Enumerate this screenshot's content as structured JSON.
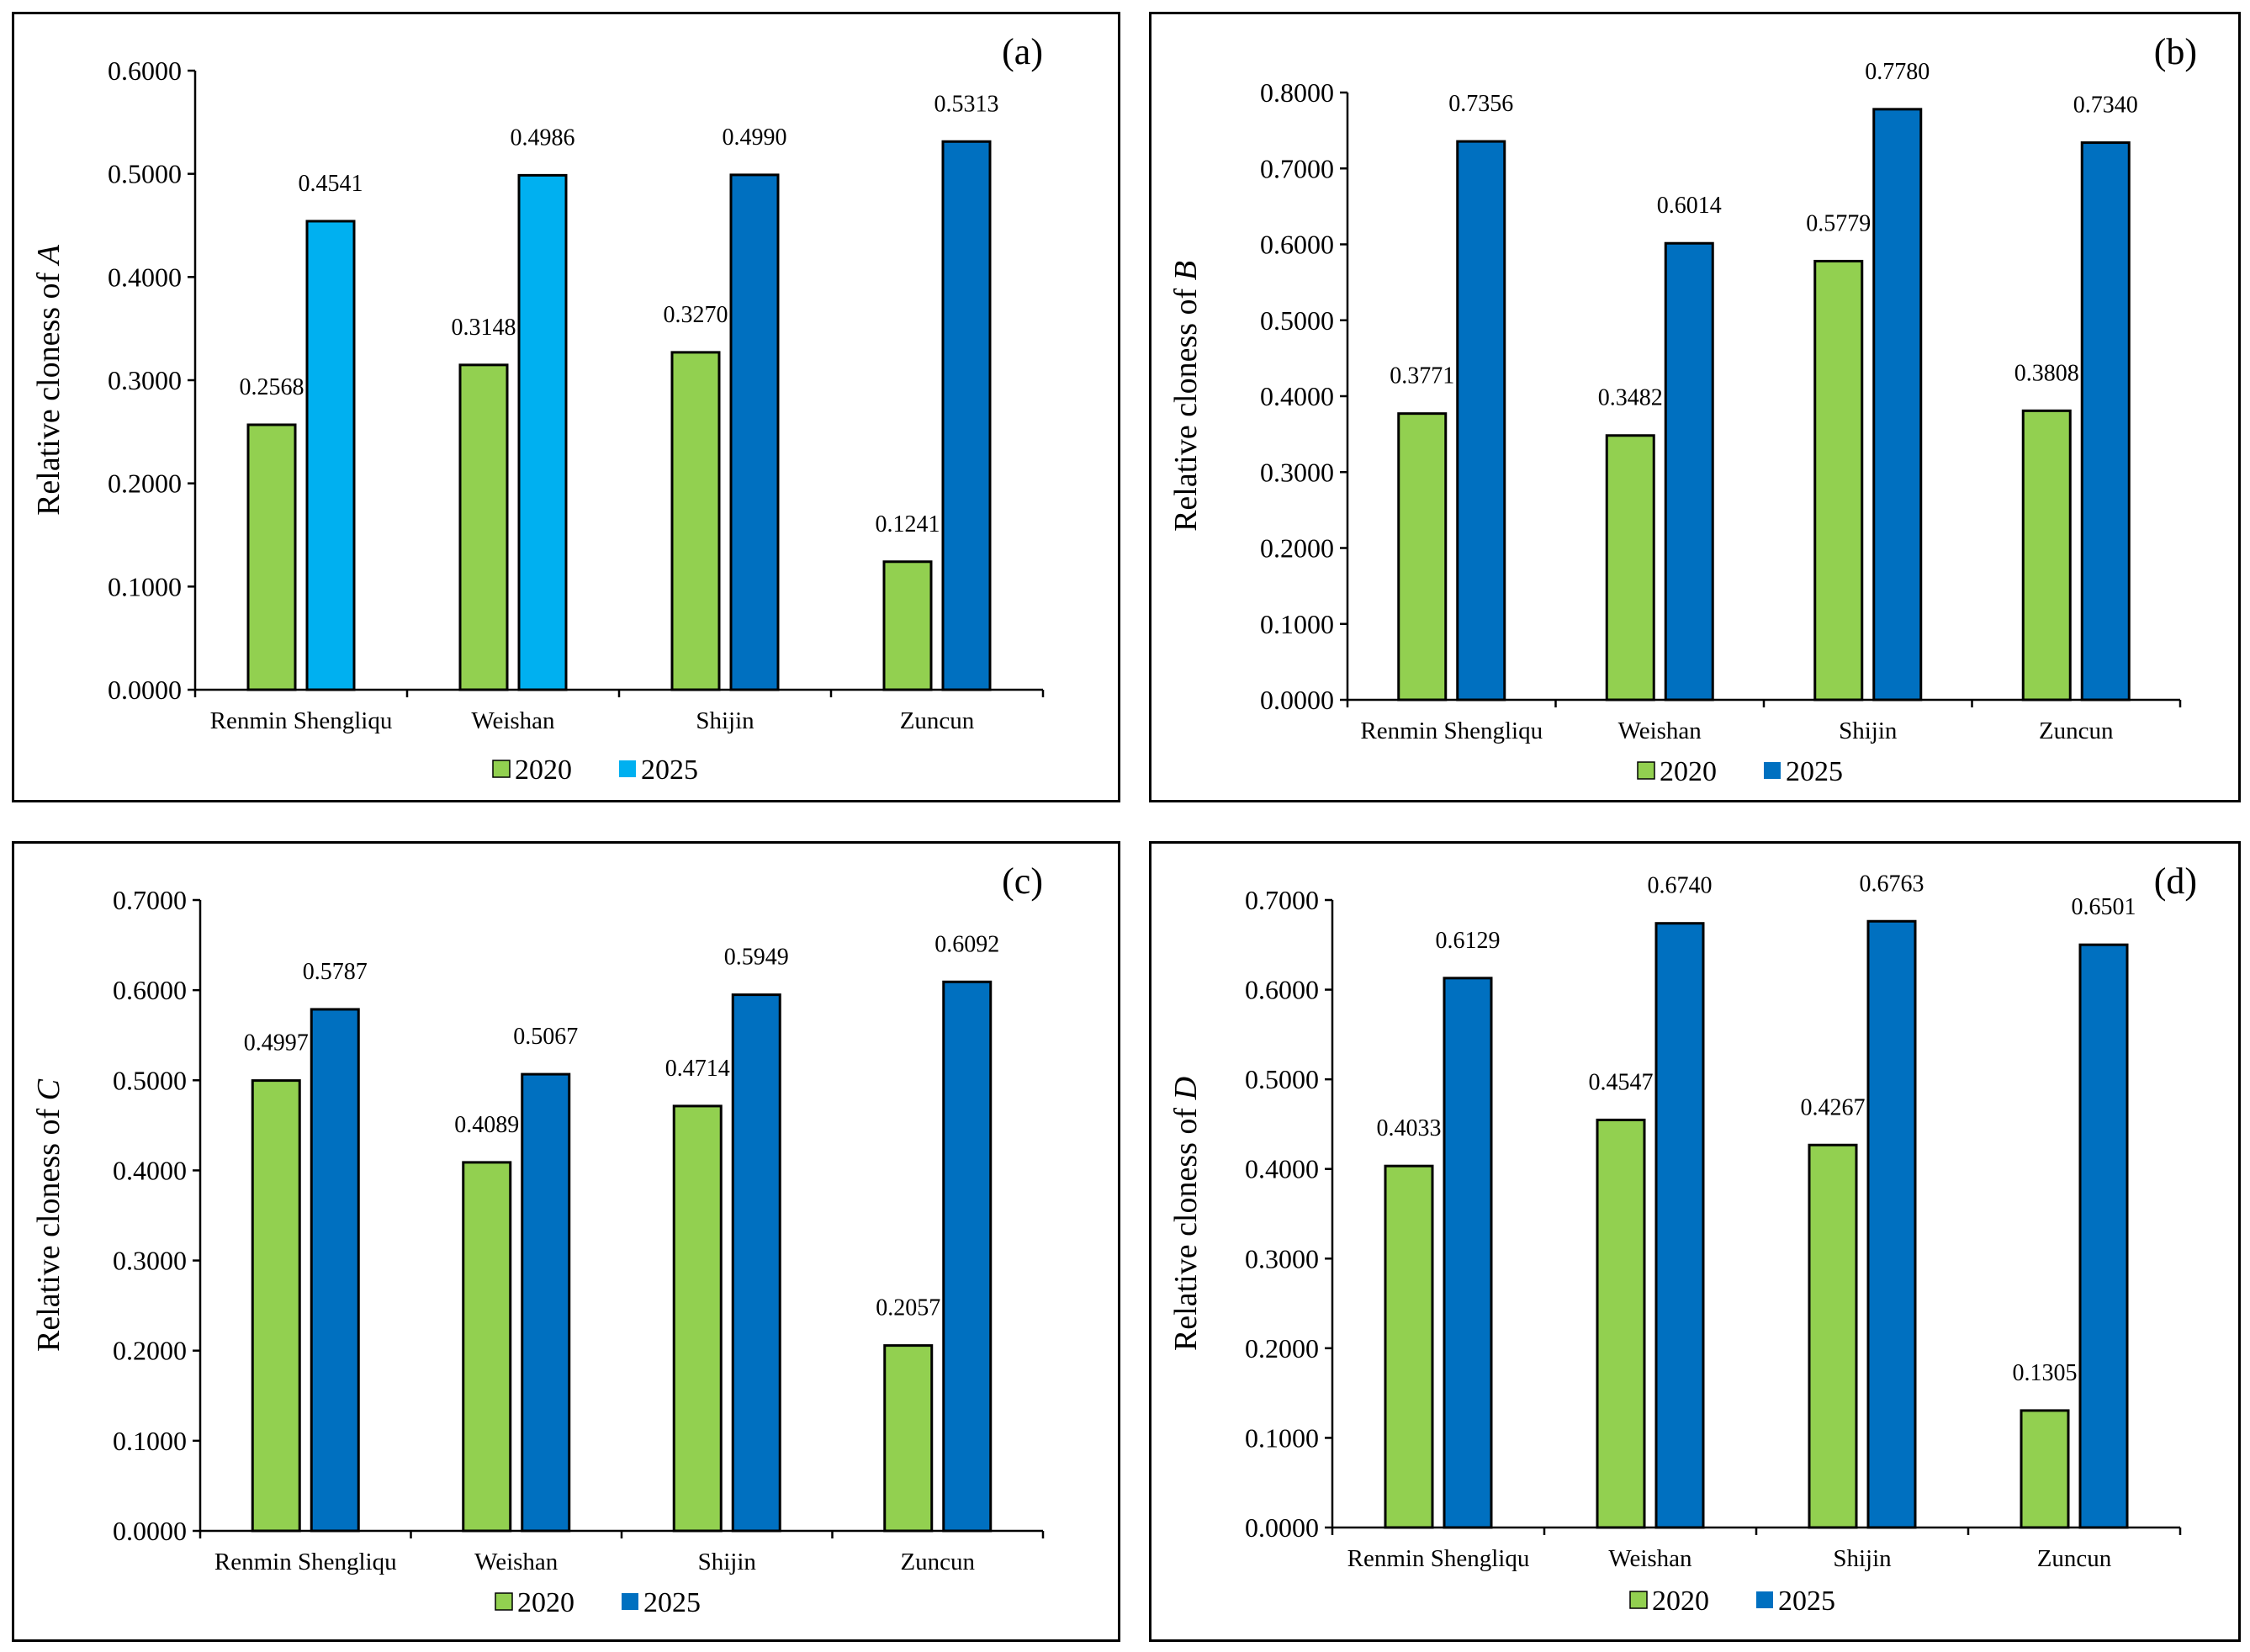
{
  "chart_data": [
    {
      "type": "bar",
      "panel_label": "(a)",
      "ylabel_prefix": "Relative cloness of ",
      "ylabel_var": "A",
      "ylim": [
        0,
        0.6
      ],
      "yticks": [
        "0.0000",
        "0.1000",
        "0.2000",
        "0.3000",
        "0.4000",
        "0.5000",
        "0.6000"
      ],
      "categories": [
        "Renmin Shengliqu",
        "Weishan",
        "Shijin",
        "Zuncun"
      ],
      "series": [
        {
          "name": "2020",
          "color": "#92d050",
          "values": [
            0.2568,
            0.3148,
            0.327,
            0.1241
          ],
          "labels": [
            "0.2568",
            "0.3148",
            "0.3270",
            "0.1241"
          ]
        },
        {
          "name": "2025",
          "color": "#0070c0",
          "bar_colors": [
            "#00b0f0",
            "#00b0f0",
            "#0070c0",
            "#0070c0"
          ],
          "values": [
            0.4541,
            0.4986,
            0.499,
            0.5313
          ],
          "labels": [
            "0.4541",
            "0.4986",
            "0.4990",
            "0.5313"
          ]
        }
      ],
      "legend_swatch_colors": [
        "#92d050",
        "#00b0f0"
      ],
      "legend": "bottom",
      "grid": false
    },
    {
      "type": "bar",
      "panel_label": "(b)",
      "ylabel_prefix": "Relative cloness of ",
      "ylabel_var": "B",
      "ylim": [
        0,
        0.8
      ],
      "yticks": [
        "0.0000",
        "0.1000",
        "0.2000",
        "0.3000",
        "0.4000",
        "0.5000",
        "0.6000",
        "0.7000",
        "0.8000"
      ],
      "categories": [
        "Renmin Shengliqu",
        "Weishan",
        "Shijin",
        "Zuncun"
      ],
      "series": [
        {
          "name": "2020",
          "color": "#92d050",
          "values": [
            0.3771,
            0.3482,
            0.5779,
            0.3808
          ],
          "labels": [
            "0.3771",
            "0.3482",
            "0.5779",
            "0.3808"
          ]
        },
        {
          "name": "2025",
          "color": "#0070c0",
          "values": [
            0.7356,
            0.6014,
            0.778,
            0.734
          ],
          "labels": [
            "0.7356",
            "0.6014",
            "0.7780",
            "0.7340"
          ]
        }
      ],
      "legend": "bottom",
      "grid": false
    },
    {
      "type": "bar",
      "panel_label": "(c)",
      "ylabel_prefix": "Relative cloness of ",
      "ylabel_var": "C",
      "ylim": [
        0,
        0.7
      ],
      "yticks": [
        "0.0000",
        "0.1000",
        "0.2000",
        "0.3000",
        "0.4000",
        "0.5000",
        "0.6000",
        "0.7000"
      ],
      "categories": [
        "Renmin Shengliqu",
        "Weishan",
        "Shijin",
        "Zuncun"
      ],
      "series": [
        {
          "name": "2020",
          "color": "#92d050",
          "values": [
            0.4997,
            0.4089,
            0.4714,
            0.2057
          ],
          "labels": [
            "0.4997",
            "0.4089",
            "0.4714",
            "0.2057"
          ]
        },
        {
          "name": "2025",
          "color": "#0070c0",
          "values": [
            0.5787,
            0.5067,
            0.5949,
            0.6092
          ],
          "labels": [
            "0.5787",
            "0.5067",
            "0.5949",
            "0.6092"
          ]
        }
      ],
      "legend": "bottom",
      "grid": false
    },
    {
      "type": "bar",
      "panel_label": "(d)",
      "ylabel_prefix": "Relative cloness of ",
      "ylabel_var": "D",
      "ylim": [
        0,
        0.7
      ],
      "yticks": [
        "0.0000",
        "0.1000",
        "0.2000",
        "0.3000",
        "0.4000",
        "0.5000",
        "0.6000",
        "0.7000"
      ],
      "categories": [
        "Renmin Shengliqu",
        "Weishan",
        "Shijin",
        "Zuncun"
      ],
      "series": [
        {
          "name": "2020",
          "color": "#92d050",
          "values": [
            0.4033,
            0.4547,
            0.4267,
            0.1305
          ],
          "labels": [
            "0.4033",
            "0.4547",
            "0.4267",
            "0.1305"
          ]
        },
        {
          "name": "2025",
          "color": "#0070c0",
          "values": [
            0.6129,
            0.674,
            0.6763,
            0.6501
          ],
          "labels": [
            "0.6129",
            "0.6740",
            "0.6763",
            "0.6501"
          ]
        }
      ],
      "legend": "bottom",
      "grid": false
    }
  ]
}
